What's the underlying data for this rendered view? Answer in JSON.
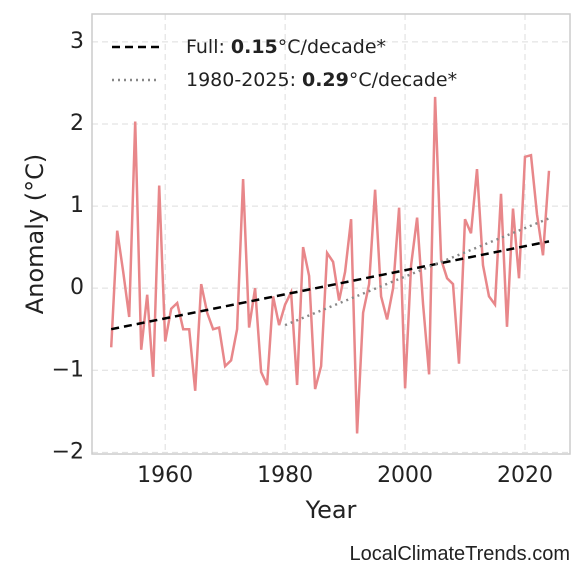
{
  "chart_data": {
    "type": "line",
    "xlabel": "Year",
    "ylabel": "Anomaly (°C)",
    "watermark": "LocalClimateTrends.com",
    "x": [
      1951,
      1952,
      1953,
      1954,
      1955,
      1956,
      1957,
      1958,
      1959,
      1960,
      1961,
      1962,
      1963,
      1964,
      1965,
      1966,
      1967,
      1968,
      1969,
      1970,
      1971,
      1972,
      1973,
      1974,
      1975,
      1976,
      1977,
      1978,
      1979,
      1980,
      1981,
      1982,
      1983,
      1984,
      1985,
      1986,
      1987,
      1988,
      1989,
      1990,
      1991,
      1992,
      1993,
      1994,
      1995,
      1996,
      1997,
      1998,
      1999,
      2000,
      2001,
      2002,
      2003,
      2004,
      2005,
      2006,
      2007,
      2008,
      2009,
      2010,
      2011,
      2012,
      2013,
      2014,
      2015,
      2016,
      2017,
      2018,
      2019,
      2020,
      2021,
      2022,
      2023,
      2024
    ],
    "series": [
      {
        "color": "#e8878a",
        "values": [
          -0.72,
          0.7,
          0.2,
          -0.35,
          2.03,
          -0.75,
          -0.08,
          -1.08,
          1.25,
          -0.65,
          -0.25,
          -0.18,
          -0.5,
          -0.5,
          -1.25,
          0.05,
          -0.3,
          -0.5,
          -0.48,
          -0.95,
          -0.88,
          -0.5,
          1.33,
          -0.48,
          0.0,
          -1.02,
          -1.18,
          -0.1,
          -0.45,
          -0.2,
          -0.05,
          -1.18,
          0.5,
          0.15,
          -1.23,
          -0.95,
          0.43,
          0.32,
          -0.15,
          0.2,
          0.84,
          -1.77,
          -0.3,
          0.05,
          1.2,
          -0.1,
          -0.38,
          0.0,
          0.98,
          -1.22,
          0.28,
          0.86,
          -0.2,
          -1.05,
          2.33,
          0.35,
          0.12,
          0.05,
          -0.92,
          0.84,
          0.67,
          1.45,
          0.28,
          -0.1,
          -0.2,
          1.15,
          -0.47,
          0.97,
          0.12,
          1.6,
          1.62,
          0.9,
          0.4,
          1.43
        ]
      },
      {
        "name": "Full:",
        "slope": 0.15,
        "unit": "°C/decade*",
        "color": "#000000",
        "dash": "8,5",
        "x": [
          1951,
          2024
        ],
        "values": [
          -0.5,
          0.57
        ]
      },
      {
        "name": "1980-2025:",
        "slope": 0.29,
        "unit": "°C/decade*",
        "color": "#888888",
        "dash": "2,4",
        "x": [
          1980,
          2024
        ],
        "values": [
          -0.45,
          0.85
        ]
      }
    ],
    "xlim": [
      1947.8,
      2027.5
    ],
    "ylim": [
      -2.02,
      3.34
    ],
    "xticks": [
      1960,
      1980,
      2000,
      2020
    ],
    "yticks": [
      {
        "value": -2,
        "label": "−2"
      },
      {
        "value": -1,
        "label": "−1"
      },
      0,
      1,
      2,
      3
    ],
    "grid": true,
    "legend": "upper left"
  }
}
